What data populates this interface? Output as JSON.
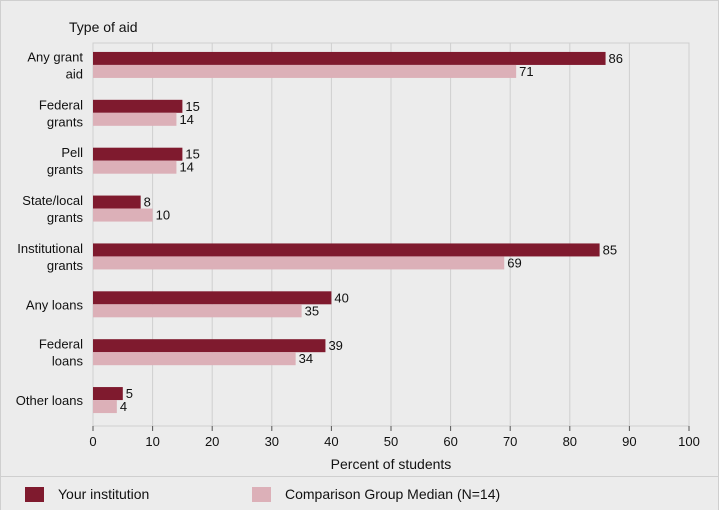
{
  "colors": {
    "institution": "#7f1a2e",
    "comparison": "#dcb0b8",
    "plot_bg": "#ececec",
    "grid": "#cfcfcf"
  },
  "chart_data": {
    "type": "bar",
    "orientation": "horizontal",
    "title": "",
    "category_axis_title": "Type of aid",
    "xlabel": "Percent of students",
    "xlim": [
      0,
      100
    ],
    "xticks": [
      "0",
      "10",
      "20",
      "30",
      "40",
      "50",
      "60",
      "70",
      "80",
      "90",
      "100"
    ],
    "grid": true,
    "legend_position": "bottom",
    "categories": [
      [
        "Any grant",
        "aid"
      ],
      [
        "Federal",
        "grants"
      ],
      [
        "Pell",
        "grants"
      ],
      [
        "State/local",
        "grants"
      ],
      [
        "Institutional",
        "grants"
      ],
      [
        "Any loans"
      ],
      [
        "Federal",
        "loans"
      ],
      [
        "Other loans"
      ]
    ],
    "series": [
      {
        "name": "Your institution",
        "values": [
          86,
          15,
          15,
          8,
          85,
          40,
          39,
          5
        ]
      },
      {
        "name": "Comparison Group Median (N=14)",
        "values": [
          71,
          14,
          14,
          10,
          69,
          35,
          34,
          4
        ]
      }
    ]
  }
}
